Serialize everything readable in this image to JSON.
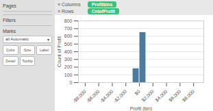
{
  "chart_data": {
    "type": "bar",
    "x": [
      -500,
      500
    ],
    "values": [
      180,
      650
    ],
    "color": "#4a7c9e",
    "xlabel": "Profit (bin)",
    "ylabel": "Count of Profit",
    "xlim": [
      -9000,
      9500
    ],
    "xticks": [
      {
        "value": -8000,
        "label": "-$8,000"
      },
      {
        "value": -6000,
        "label": "-$6,000"
      },
      {
        "value": -4000,
        "label": "-$4,000"
      },
      {
        "value": -2000,
        "label": "-$2,000"
      },
      {
        "value": 0,
        "label": "$0"
      },
      {
        "value": 2000,
        "label": "$2,000"
      },
      {
        "value": 4000,
        "label": "$4,000"
      },
      {
        "value": 6000,
        "label": "$6,000"
      },
      {
        "value": 8000,
        "label": "$8,000"
      }
    ],
    "ylim": [
      0,
      800
    ],
    "yticks": [
      0,
      100,
      200,
      300,
      400,
      500,
      600,
      700,
      800
    ],
    "grid": "y",
    "annotations": [
      "Pages",
      "Filters",
      "Marks",
      "all Automatic",
      "▾",
      "Color",
      "Size",
      "Label",
      "Detail",
      "Tooltip",
      "≡ Columns",
      "Profitbins",
      "≡ Rows",
      "CntofProfit"
    ]
  }
}
